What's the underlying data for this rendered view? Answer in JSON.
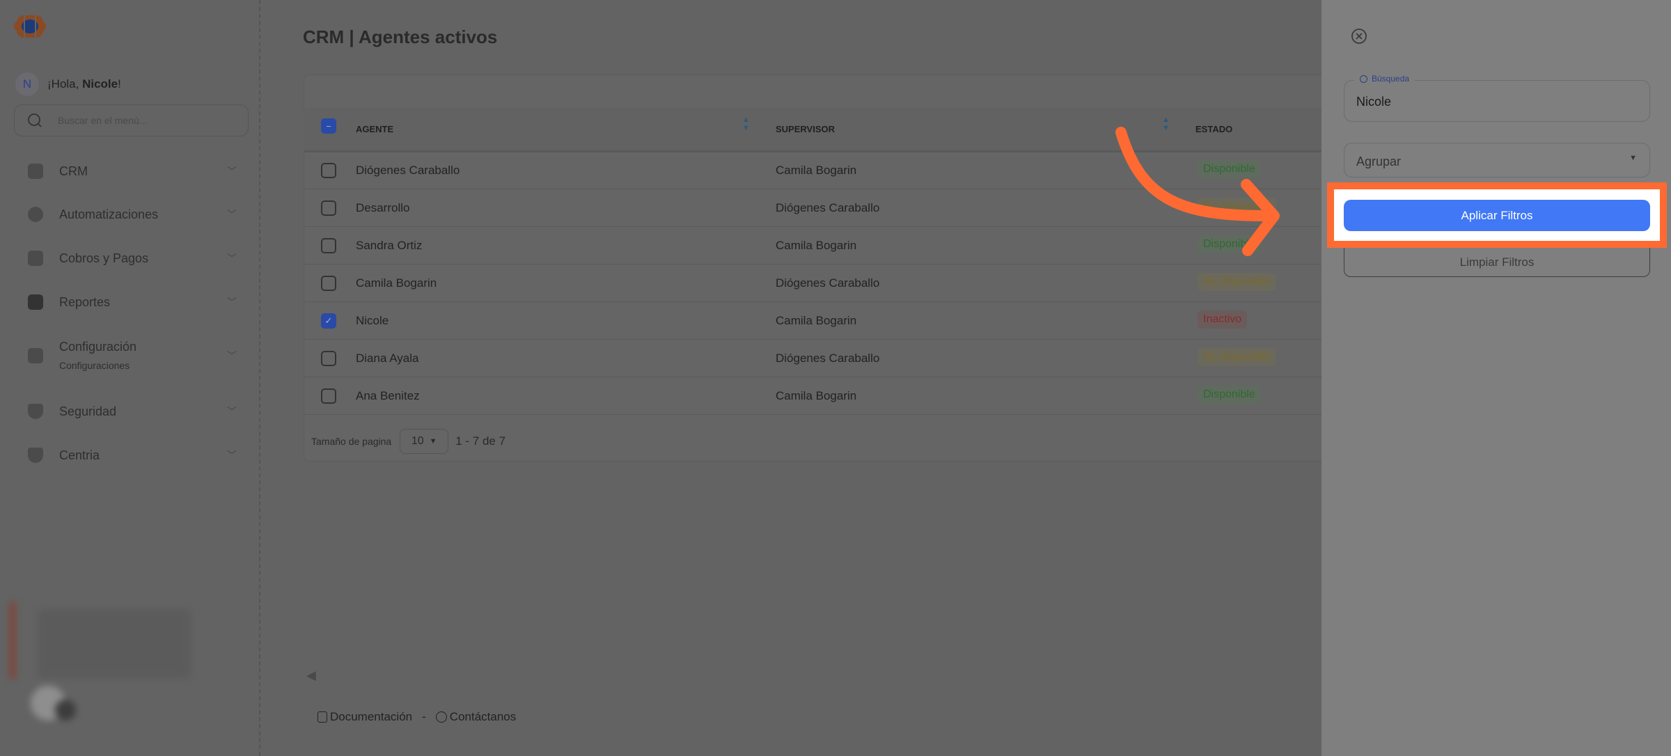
{
  "sidebar": {
    "greeting_prefix": "¡Hola, ",
    "user_name": "Nicole",
    "greeting_suffix": "!",
    "avatar_initial": "N",
    "search_placeholder": "Buscar en el menú...",
    "items": [
      {
        "label": "CRM",
        "icon": "file-icon"
      },
      {
        "label": "Automatizaciones",
        "icon": "hexagon-icon"
      },
      {
        "label": "Cobros y Pagos",
        "icon": "id-card-icon"
      },
      {
        "label": "Reportes",
        "icon": "wallet-icon"
      },
      {
        "label": "Configuración",
        "sublabel": "Configuraciones",
        "icon": "book-icon"
      },
      {
        "label": "Seguridad",
        "icon": "shield-icon"
      },
      {
        "label": "Centria",
        "icon": "shield-icon"
      }
    ]
  },
  "header": {
    "title": "CRM | Agentes activos"
  },
  "table": {
    "columns": [
      "AGENTE",
      "SUPERVISOR",
      "ESTADO"
    ],
    "rows": [
      {
        "agente": "Diógenes Caraballo",
        "supervisor": "Camila Bogarin",
        "estado": "Disponible",
        "checked": false
      },
      {
        "agente": "Desarrollo",
        "supervisor": "Diógenes Caraballo",
        "estado": "No disponible",
        "checked": false
      },
      {
        "agente": "Sandra Ortiz",
        "supervisor": "Camila Bogarin",
        "estado": "Disponible",
        "checked": false
      },
      {
        "agente": "Camila Bogarin",
        "supervisor": "Diógenes Caraballo",
        "estado": "No disponible",
        "checked": false
      },
      {
        "agente": "Nicole",
        "supervisor": "Camila Bogarin",
        "estado": "Inactivo",
        "checked": true
      },
      {
        "agente": "Diana Ayala",
        "supervisor": "Diógenes Caraballo",
        "estado": "No disponible",
        "checked": false
      },
      {
        "agente": "Ana Benitez",
        "supervisor": "Camila Bogarin",
        "estado": "Disponible",
        "checked": false
      }
    ],
    "status_colors": {
      "Disponible": "#2e6b2e",
      "No disponible": "#7a6a2a",
      "Inactivo": "#8a2a2a"
    }
  },
  "pagination": {
    "label": "Tamaño de pagina",
    "page_size": "10",
    "range": "1 - 7 de 7"
  },
  "footer": {
    "docs": "Documentación",
    "separator": "-",
    "contact": "Contáctanos"
  },
  "filter_panel": {
    "search_label": "Búsqueda",
    "search_value": "Nicole",
    "group_placeholder": "Agrupar",
    "apply_label": "Aplicar Filtros",
    "clear_label": "Limpiar Filtros"
  },
  "colors": {
    "accent": "#4078f5",
    "highlight": "#ff6a33"
  }
}
